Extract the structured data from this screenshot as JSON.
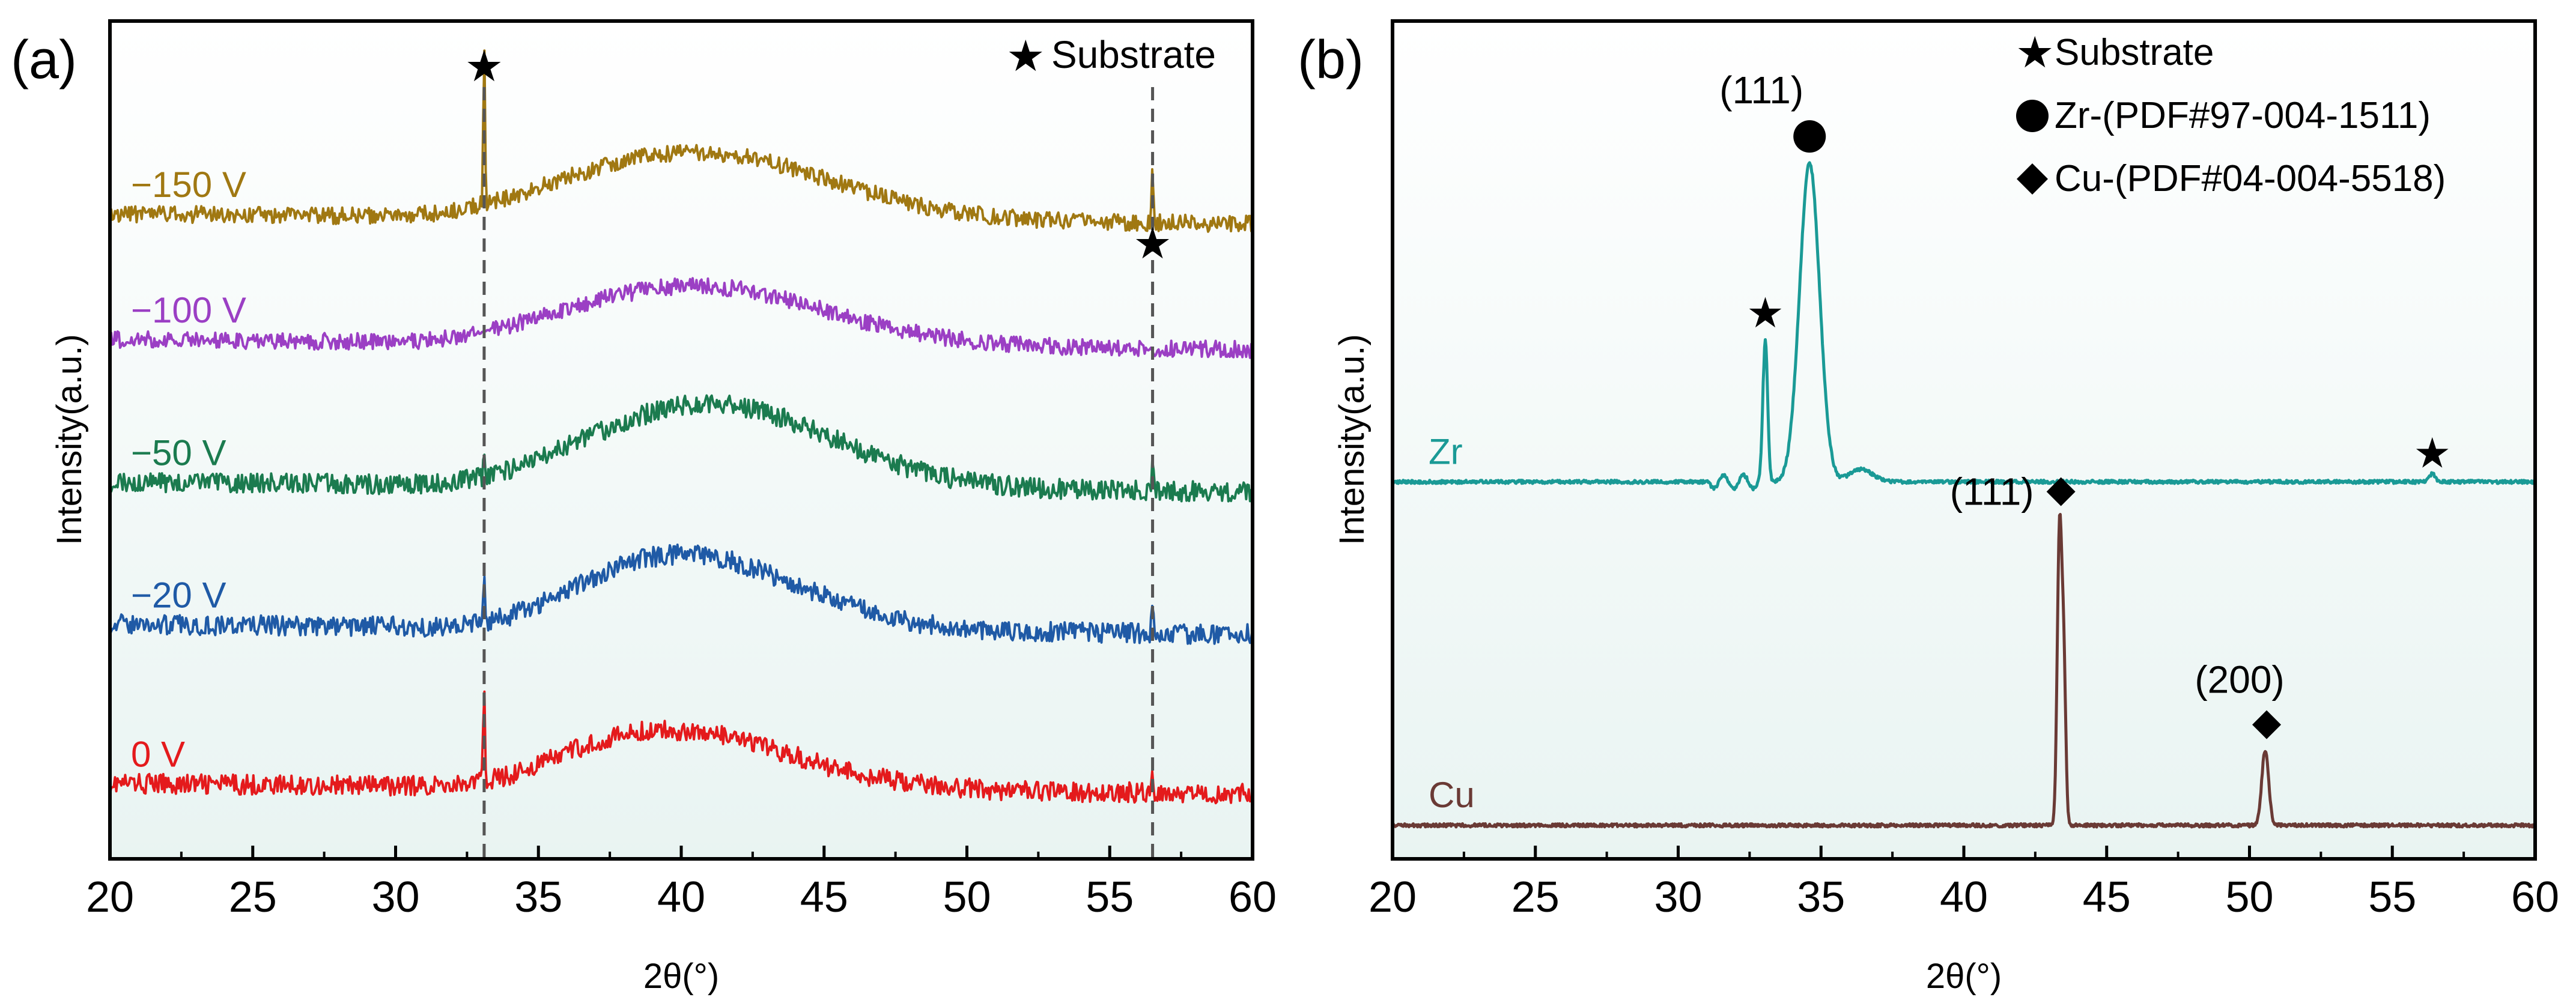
{
  "chart_data": [
    {
      "panel_label": "(a)",
      "type": "line",
      "xlabel": "2θ(°)",
      "ylabel": "Intensity(a.u.)",
      "xlim": [
        20,
        60
      ],
      "xticks": [
        "20",
        "25",
        "30",
        "35",
        "40",
        "45",
        "50",
        "55",
        "60"
      ],
      "legend": {
        "symbol": "★",
        "label": "Substrate",
        "placement": "top-right"
      },
      "reference_lines": [
        {
          "x": 33.1,
          "marker": "★"
        },
        {
          "x": 56.5,
          "marker": "★"
        }
      ],
      "series": [
        {
          "name": "0 V",
          "color": "#e41a1c",
          "baseline": 0.09,
          "hump": 0.07,
          "hump_center": 39.5,
          "hump_width": 4.2,
          "rise_start": 32.0,
          "noise": 0.012,
          "sharp_peaks": [
            {
              "x": 33.1,
              "h": 0.12
            },
            {
              "x": 56.5,
              "h": 0.02
            }
          ]
        },
        {
          "name": "−20 V",
          "color": "#1f5aa6",
          "baseline": 0.28,
          "hump": 0.09,
          "hump_center": 40.0,
          "hump_width": 4.0,
          "rise_start": 32.0,
          "noise": 0.012,
          "sharp_peaks": [
            {
              "x": 33.1,
              "h": 0.07
            },
            {
              "x": 56.5,
              "h": 0.04
            }
          ]
        },
        {
          "name": "−50 V",
          "color": "#1b7b4f",
          "baseline": 0.45,
          "hump": 0.1,
          "hump_center": 41.0,
          "hump_width": 4.2,
          "rise_start": 30.5,
          "noise": 0.012,
          "sharp_peaks": [
            {
              "x": 33.1,
              "h": 0.02
            },
            {
              "x": 56.5,
              "h": 0.03
            }
          ]
        },
        {
          "name": "−100 V",
          "color": "#9b3fc4",
          "baseline": 0.62,
          "hump": 0.07,
          "hump_center": 40.5,
          "hump_width": 4.5,
          "rise_start": 30.0,
          "noise": 0.01,
          "sharp_peaks": []
        },
        {
          "name": "−150 V",
          "color": "#a07812",
          "baseline": 0.77,
          "hump": 0.08,
          "hump_center": 40.5,
          "hump_width": 4.6,
          "rise_start": 30.0,
          "noise": 0.01,
          "sharp_peaks": [
            {
              "x": 33.1,
              "h": 0.2
            },
            {
              "x": 56.5,
              "h": 0.06
            }
          ]
        }
      ]
    },
    {
      "panel_label": "(b)",
      "type": "line",
      "xlabel": "2θ(°)",
      "ylabel": "Intensity(a.u.)",
      "xlim": [
        20,
        60
      ],
      "xticks": [
        "20",
        "25",
        "30",
        "35",
        "40",
        "45",
        "50",
        "55",
        "60"
      ],
      "legend": [
        {
          "symbol": "★",
          "label": "Substrate"
        },
        {
          "symbol": "●",
          "label": "Zr-(PDF#97-004-1511)"
        },
        {
          "symbol": "◆",
          "label": "Cu-(PDF#04-004-5518)"
        }
      ],
      "series": [
        {
          "name": "Zr",
          "color": "#1a9a96",
          "baseline": 0.45,
          "noise": 0.002,
          "peaks": [
            {
              "x": 33.05,
              "h": 0.17,
              "w": 0.08
            },
            {
              "x": 34.6,
              "h": 0.38,
              "w": 0.35
            },
            {
              "x": 36.4,
              "h": 0.015,
              "w": 0.4
            },
            {
              "x": 56.4,
              "h": 0.01,
              "w": 0.1
            }
          ]
        },
        {
          "name": "Cu",
          "color": "#6a3a35",
          "baseline": 0.04,
          "noise": 0.002,
          "peaks": [
            {
              "x": 43.35,
              "h": 0.35,
              "w": 0.08
            },
            {
              "x": 43.5,
              "h": 0.18,
              "w": 0.07
            },
            {
              "x": 50.55,
              "h": 0.09,
              "w": 0.12
            }
          ]
        }
      ],
      "annotations": [
        {
          "text": "(111)",
          "x": 34.6,
          "marker": "●",
          "target": "Zr"
        },
        {
          "text": "★",
          "x": 33.05,
          "target": "Zr"
        },
        {
          "text": "★",
          "x": 56.4,
          "target": "Zr"
        },
        {
          "text": "(111)",
          "x": 43.4,
          "marker": "◆",
          "target": "Cu"
        },
        {
          "text": "(200)",
          "x": 50.6,
          "marker": "◆",
          "target": "Cu"
        }
      ]
    }
  ]
}
